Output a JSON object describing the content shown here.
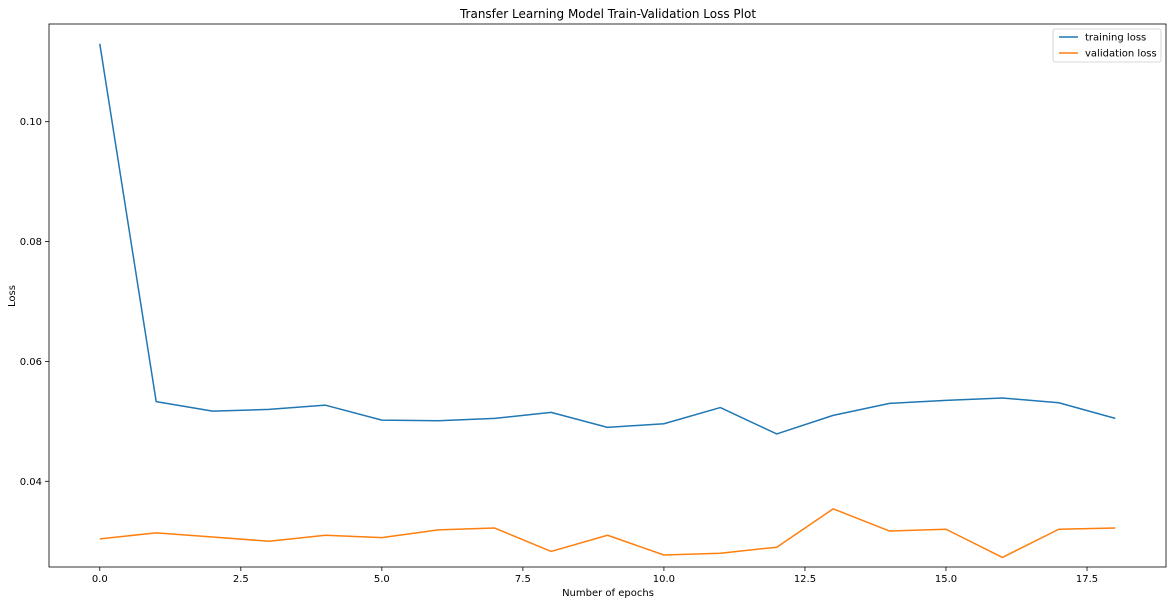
{
  "chart_data": {
    "type": "line",
    "title": "Transfer Learning Model Train-Validation Loss Plot",
    "xlabel": "Number of epochs",
    "ylabel": "Loss",
    "x": [
      0,
      1,
      2,
      3,
      4,
      5,
      6,
      7,
      8,
      9,
      10,
      11,
      12,
      13,
      14,
      15,
      16,
      17,
      18
    ],
    "xlim": [
      -0.9,
      18.9
    ],
    "ylim": [
      0.0257,
      0.1163
    ],
    "xticks": [
      0.0,
      2.5,
      5.0,
      7.5,
      10.0,
      12.5,
      15.0,
      17.5
    ],
    "xtick_labels": [
      "0.0",
      "2.5",
      "5.0",
      "7.5",
      "10.0",
      "12.5",
      "15.0",
      "17.5"
    ],
    "yticks": [
      0.04,
      0.06,
      0.08,
      0.1
    ],
    "ytick_labels": [
      "0.04",
      "0.06",
      "0.08",
      "0.10"
    ],
    "grid": false,
    "legend_position": "top-right",
    "series": [
      {
        "name": "training loss",
        "color": "#1f77b4",
        "values": [
          0.113,
          0.0533,
          0.0517,
          0.052,
          0.0527,
          0.0502,
          0.0501,
          0.0505,
          0.0515,
          0.049,
          0.0496,
          0.0523,
          0.0479,
          0.051,
          0.053,
          0.0535,
          0.0539,
          0.0531,
          0.0505
        ]
      },
      {
        "name": "validation loss",
        "color": "#ff7f0e",
        "values": [
          0.0304,
          0.0314,
          0.0307,
          0.03,
          0.031,
          0.0306,
          0.0319,
          0.0322,
          0.0283,
          0.031,
          0.0277,
          0.028,
          0.029,
          0.0354,
          0.0317,
          0.032,
          0.0273,
          0.032,
          0.0322
        ]
      }
    ]
  }
}
